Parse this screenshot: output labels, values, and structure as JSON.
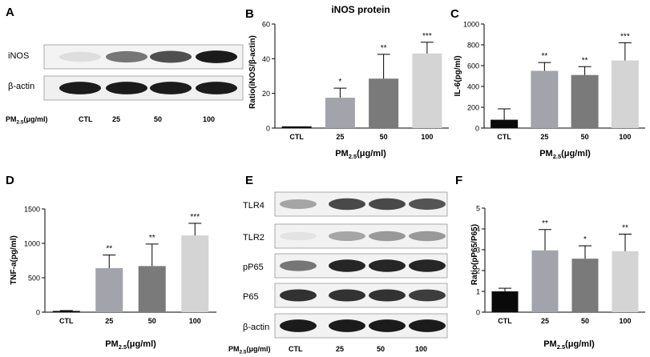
{
  "panel_letters": {
    "A": "A",
    "B": "B",
    "C": "C",
    "D": "D",
    "E": "E",
    "F": "F"
  },
  "blot_a": {
    "rows": [
      "iNOS",
      "β-actin"
    ],
    "xlabel_main": "PM",
    "xlabel_sub": "2.5",
    "xlabel_unit": "(μg/ml)",
    "lanes": [
      "CTL",
      "25",
      "50",
      "100"
    ],
    "band_intensity": {
      "iNOS": [
        0.1,
        0.55,
        0.72,
        0.95
      ],
      "β-actin": [
        0.95,
        0.95,
        0.95,
        0.95
      ]
    }
  },
  "blot_e": {
    "rows": [
      "TLR4",
      "TLR2",
      "pP65",
      "P65",
      "β-actin"
    ],
    "xlabel_main": "PM",
    "xlabel_sub": "2.5",
    "xlabel_unit": "(μg/ml)",
    "lanes": [
      "CTL",
      "25",
      "50",
      "100"
    ],
    "band_intensity": {
      "TLR4": [
        0.35,
        0.75,
        0.75,
        0.7
      ],
      "TLR2": [
        0.08,
        0.35,
        0.4,
        0.4
      ],
      "pP65": [
        0.55,
        0.9,
        0.9,
        0.9
      ],
      "P65": [
        0.85,
        0.85,
        0.85,
        0.8
      ],
      "β-actin": [
        0.95,
        0.95,
        0.95,
        0.95
      ]
    }
  },
  "colors": {
    "CTL": "#0a0a0a",
    "25": "#a3a3ab",
    "50": "#7a7a7a",
    "100": "#d4d4d4"
  },
  "chart_data": [
    {
      "type": "bar",
      "panel": "B",
      "title": "iNOS protein",
      "categories": [
        "CTL",
        "25",
        "50",
        "100"
      ],
      "values": [
        1,
        17.5,
        28.5,
        43
      ],
      "errors": [
        0,
        5.5,
        14,
        6.5
      ],
      "significance": [
        "",
        "*",
        "**",
        "***"
      ],
      "ylabel": "Ratio(iNOS/β-actin)",
      "xlabel_main": "PM",
      "xlabel_sub": "2.5",
      "xlabel_unit": "(μg/ml)",
      "ylim": [
        0,
        60
      ],
      "yticks": [
        "0",
        "20",
        "40",
        "60"
      ]
    },
    {
      "type": "bar",
      "panel": "C",
      "title": "",
      "categories": [
        "CTL",
        "25",
        "50",
        "100"
      ],
      "values": [
        80,
        550,
        510,
        650
      ],
      "errors": [
        105,
        80,
        80,
        170
      ],
      "significance": [
        "",
        "**",
        "**",
        "***"
      ],
      "ylabel": "IL-6(pg/ml)",
      "xlabel_main": "PM",
      "xlabel_sub": "2.5",
      "xlabel_unit": "(μg/ml)",
      "ylim": [
        0,
        1000
      ],
      "yticks": [
        "0",
        "200",
        "400",
        "600",
        "800",
        "1000"
      ]
    },
    {
      "type": "bar",
      "panel": "D",
      "title": "",
      "categories": [
        "CTL",
        "25",
        "50",
        "100"
      ],
      "values": [
        18,
        640,
        670,
        1115
      ],
      "errors": [
        5,
        190,
        320,
        175
      ],
      "significance": [
        "",
        "**",
        "**",
        "***"
      ],
      "ylabel": "TNF-a(pg/ml)",
      "xlabel_main": "PM",
      "xlabel_sub": "2.5",
      "xlabel_unit": "(μg/ml)",
      "ylim": [
        0,
        1500
      ],
      "yticks": [
        "0",
        "500",
        "1000",
        "1500"
      ]
    },
    {
      "type": "bar",
      "panel": "F",
      "title": "",
      "categories": [
        "CTL",
        "25",
        "50",
        "100"
      ],
      "values": [
        1.0,
        2.97,
        2.57,
        2.93
      ],
      "errors": [
        0.15,
        1.0,
        0.62,
        0.82
      ],
      "significance": [
        "",
        "**",
        "*",
        "**"
      ],
      "ylabel": "Ratio(pP65/P65)",
      "xlabel_main": "PM",
      "xlabel_sub": "2.5",
      "xlabel_unit": "(μg/ml)",
      "ylim": [
        0,
        5
      ],
      "yticks": [
        "0",
        "1",
        "2",
        "3",
        "4",
        "5"
      ]
    }
  ]
}
